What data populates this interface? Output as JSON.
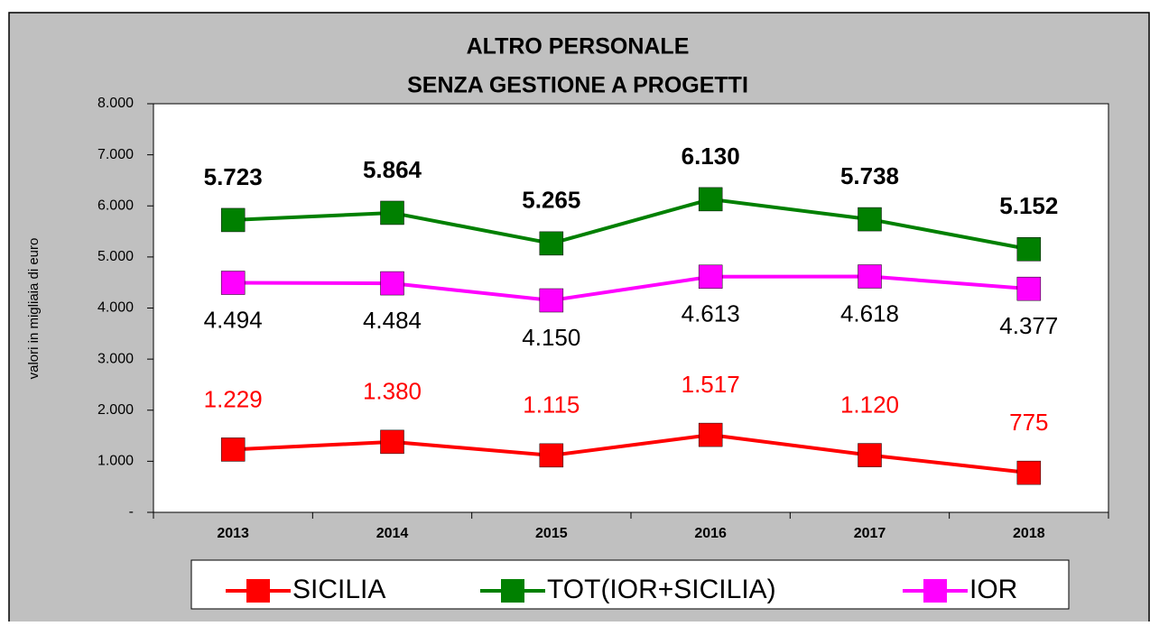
{
  "chart_data": {
    "type": "line",
    "title": "ALTRO PERSONALE",
    "subtitle": "SENZA GESTIONE A PROGETTI",
    "y_axis_label": "valori in migliaia di euro",
    "categories": [
      "2013",
      "2014",
      "2015",
      "2016",
      "2017",
      "2018"
    ],
    "series": [
      {
        "name": "SICILIA",
        "color": "#ff0000",
        "values": [
          1229,
          1380,
          1115,
          1517,
          1120,
          775
        ],
        "value_labels": [
          "1.229",
          "1.380",
          "1.115",
          "1.517",
          "1.120",
          "775"
        ]
      },
      {
        "name": "TOT(IOR+SICILIA)",
        "color": "#008000",
        "values": [
          5723,
          5864,
          5265,
          6130,
          5738,
          5152
        ],
        "value_labels": [
          "5.723",
          "5.864",
          "5.265",
          "6.130",
          "5.738",
          "5.152"
        ]
      },
      {
        "name": "IOR",
        "color": "#ff00ff",
        "values": [
          4494,
          4484,
          4150,
          4613,
          4618,
          4377
        ],
        "value_labels": [
          "4.494",
          "4.484",
          "4.150",
          "4.613",
          "4.618",
          "4.377"
        ]
      }
    ],
    "ylim": [
      0,
      8000
    ],
    "yticks": [
      {
        "value": 0,
        "label": "-"
      },
      {
        "value": 1000,
        "label": "1.000"
      },
      {
        "value": 2000,
        "label": "2.000"
      },
      {
        "value": 3000,
        "label": "3.000"
      },
      {
        "value": 4000,
        "label": "4.000"
      },
      {
        "value": 5000,
        "label": "5.000"
      },
      {
        "value": 6000,
        "label": "6.000"
      },
      {
        "value": 7000,
        "label": "7.000"
      },
      {
        "value": 8000,
        "label": "8.000"
      }
    ],
    "grid": false,
    "legend": "bottom"
  }
}
